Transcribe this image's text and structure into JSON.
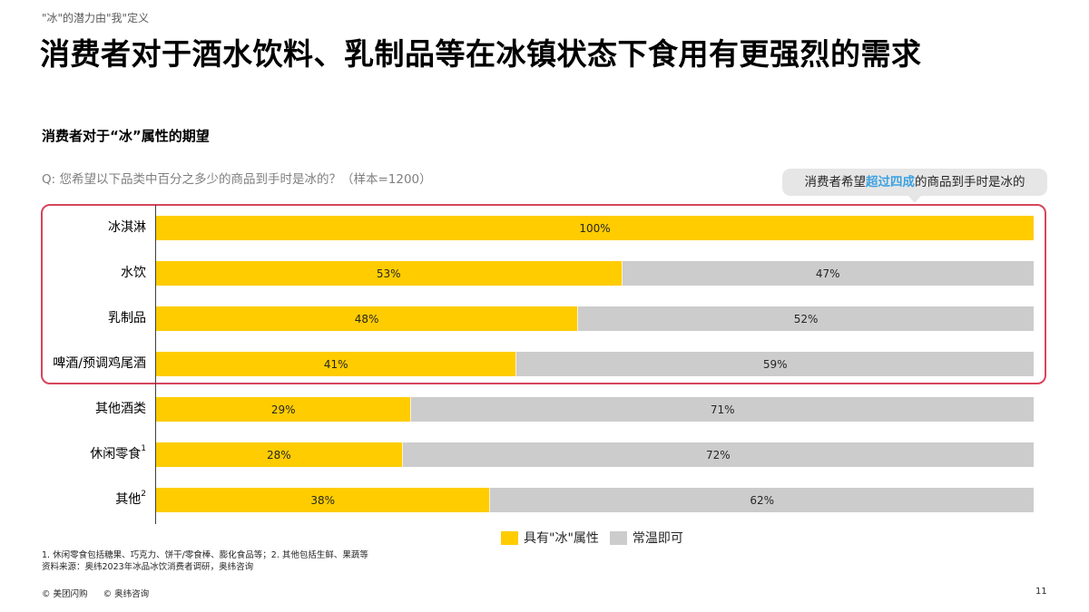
{
  "header": {
    "kicker": "\"冰\"的潜力由\"我\"定义",
    "title": "消费者对于酒水饮料、乳制品等在冰镇状态下食用有更强烈的需求"
  },
  "section": {
    "subtitle": "消费者对于“冰”属性的期望",
    "question": "Q: 您希望以下品类中百分之多少的商品到手时是冰的？（样本=1200）"
  },
  "callout": {
    "prefix": "消费者希望",
    "highlight": "超过四成",
    "suffix": "的商品到手时是冰的",
    "highlight_color": "#3ba1e0"
  },
  "colors": {
    "ice": "#ffcc00",
    "room_temp": "#cccccc",
    "highlight_border": "#d6455c",
    "callout_bg": "#e6e6e6"
  },
  "chart_data": {
    "type": "bar",
    "orientation": "horizontal",
    "stacked": true,
    "percent_stacked": true,
    "title": "消费者对于“冰”属性的期望",
    "subtitle": "Q: 您希望以下品类中百分之多少的商品到手时是冰的？（样本=1200）",
    "categories": [
      "冰淇淋",
      "水饮",
      "乳制品",
      "啤酒/预调鸡尾酒",
      "其他酒类",
      "休闲零食¹",
      "其他²"
    ],
    "series": [
      {
        "name": "具有\"冰\"属性",
        "color": "#ffcc00",
        "values": [
          100,
          53,
          48,
          41,
          29,
          28,
          38
        ]
      },
      {
        "name": "常温即可",
        "color": "#cccccc",
        "values": [
          0,
          47,
          52,
          59,
          71,
          72,
          62
        ]
      }
    ],
    "xlim": [
      0,
      100
    ],
    "xlabel": "",
    "ylabel": "",
    "grid": false,
    "legend_position": "bottom",
    "data_labels": true,
    "annotations": [
      {
        "type": "highlight-box",
        "categories": [
          "冰淇淋",
          "水饮",
          "乳制品",
          "啤酒/预调鸡尾酒"
        ]
      },
      {
        "type": "callout",
        "text": "消费者希望超过四成的商品到手时是冰的"
      }
    ]
  },
  "rows": [
    {
      "label": "冰淇淋",
      "sup": "",
      "ice": "100%",
      "room": "",
      "ice_w": "100%",
      "room_w": "0%"
    },
    {
      "label": "水饮",
      "sup": "",
      "ice": "53%",
      "room": "47%",
      "ice_w": "53%",
      "room_w": "47%"
    },
    {
      "label": "乳制品",
      "sup": "",
      "ice": "48%",
      "room": "52%",
      "ice_w": "48%",
      "room_w": "52%"
    },
    {
      "label": "啤酒/预调鸡尾酒",
      "sup": "",
      "ice": "41%",
      "room": "59%",
      "ice_w": "41%",
      "room_w": "59%"
    },
    {
      "label": "其他酒类",
      "sup": "",
      "ice": "29%",
      "room": "71%",
      "ice_w": "29%",
      "room_w": "71%"
    },
    {
      "label": "休闲零食",
      "sup": "1",
      "ice": "28%",
      "room": "72%",
      "ice_w": "28%",
      "room_w": "72%"
    },
    {
      "label": "其他",
      "sup": "2",
      "ice": "38%",
      "room": "62%",
      "ice_w": "38%",
      "room_w": "62%"
    }
  ],
  "legend": {
    "ice_label": "具有\"冰\"属性",
    "room_label": "常温即可"
  },
  "notes": {
    "line1": "1. 休闲零食包括糖果、巧克力、饼干/零食棒、膨化食品等；2. 其他包括生鲜、果蔬等",
    "line2": "资料来源：奥纬2023年冰品冰饮消费者调研，奥纬咨询"
  },
  "footer": {
    "credit1": "© 美团闪购",
    "credit2": "© 奥纬咨询",
    "page_number": "11"
  }
}
